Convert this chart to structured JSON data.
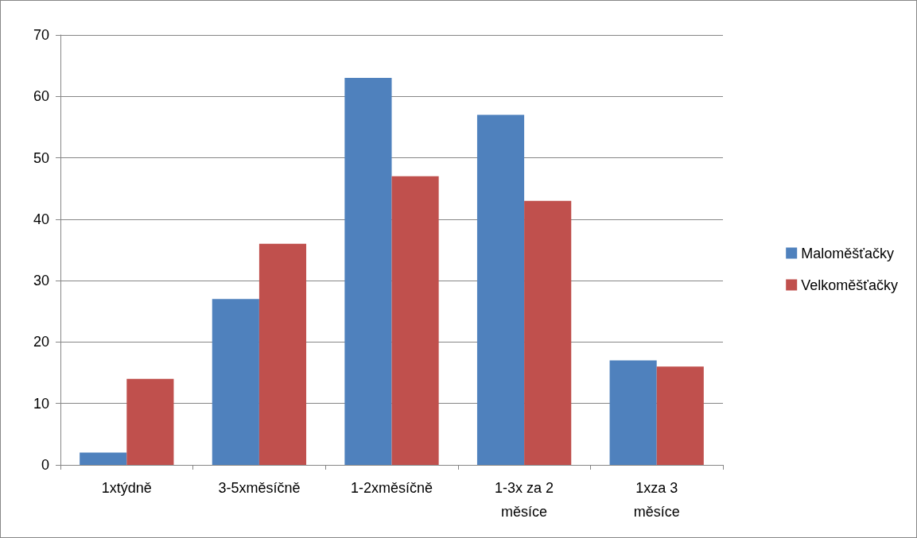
{
  "chart_data": {
    "type": "bar",
    "categories": [
      "1xtýdně",
      "3-5xměsíčně",
      "1-2xměsíčně",
      "1-3x za 2 měsíce",
      "1xza 3 měsíce"
    ],
    "series": [
      {
        "name": "Maloměšťačky",
        "color": "#4f81bd",
        "values": [
          2,
          27,
          63,
          57,
          17
        ]
      },
      {
        "name": "Velkoměšťačky",
        "color": "#c0504d",
        "values": [
          14,
          36,
          47,
          43,
          16
        ]
      }
    ],
    "ylim": [
      0,
      70
    ],
    "yticks": [
      0,
      10,
      20,
      30,
      40,
      50,
      60,
      70
    ],
    "grid": "y",
    "legend": "right"
  }
}
